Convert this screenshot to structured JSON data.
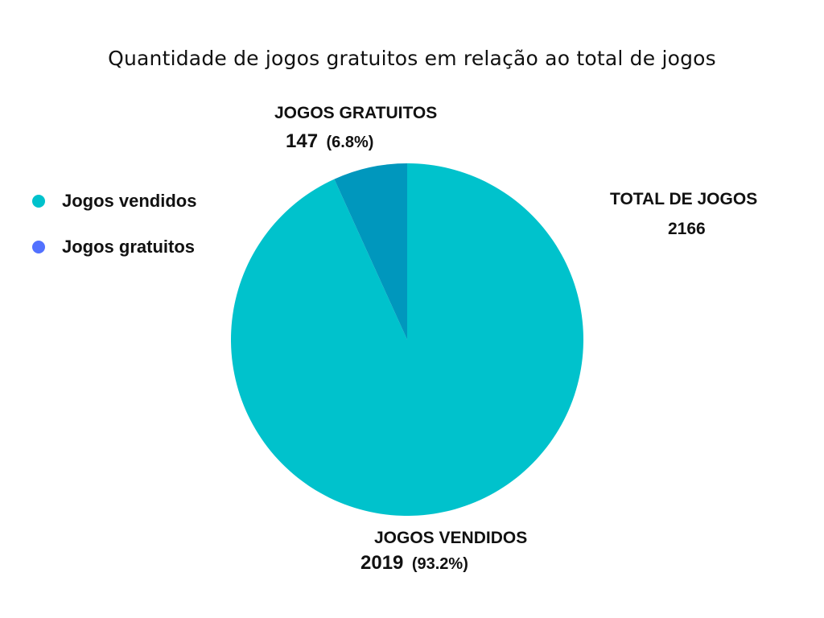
{
  "chart_data": {
    "type": "pie",
    "title": "Quantidade de jogos gratuitos em relação ao total de jogos",
    "slices": [
      {
        "name": "Jogos vendidos",
        "label": "JOGOS VENDIDOS",
        "value": 2019,
        "value_text": "2019",
        "percent_text": "(93.2%)",
        "color": "#00C2CC"
      },
      {
        "name": "Jogos gratuitos",
        "label": "JOGOS GRATUITOS",
        "value": 147,
        "value_text": "147",
        "percent_text": "(6.8%)",
        "color": "#0097BD"
      }
    ],
    "legend": {
      "placement": "left",
      "items": [
        {
          "label": "Jogos vendidos",
          "color": "#00C2CC"
        },
        {
          "label": "Jogos gratuitos",
          "color": "#5271FF"
        }
      ]
    },
    "annotation": {
      "label": "TOTAL DE JOGOS",
      "value": "2166"
    }
  }
}
